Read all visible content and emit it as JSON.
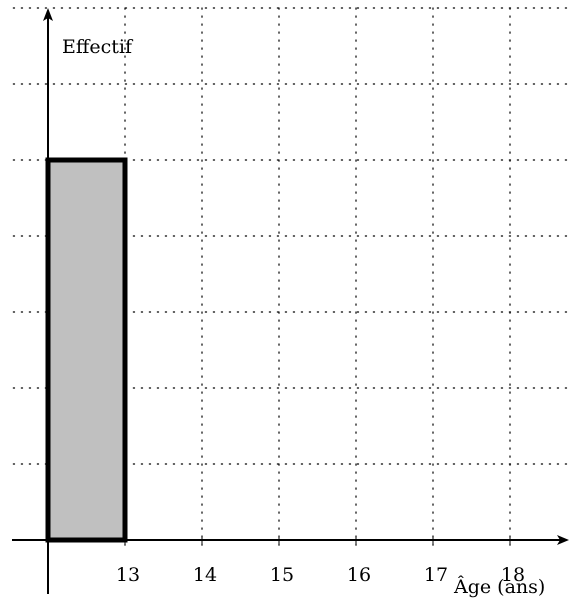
{
  "chart_data": {
    "type": "bar",
    "title": "",
    "xlabel": "Âge (ans)",
    "ylabel": "Effectif",
    "x_tick_labels": [
      "13",
      "14",
      "15",
      "16",
      "17",
      "18"
    ],
    "x_ticks": [
      13,
      14,
      15,
      16,
      17,
      18
    ],
    "bars": [
      {
        "x_start": 12.0,
        "x_end": 13.0,
        "height": 5
      }
    ],
    "xlim": [
      11.55,
      19.2
    ],
    "ylim": [
      -0.1,
      7.0
    ],
    "grid": true,
    "grid_style": "dotted",
    "bar_color": "#c0c0c0",
    "edge_color": "#000000",
    "axis_color": "#000000"
  }
}
